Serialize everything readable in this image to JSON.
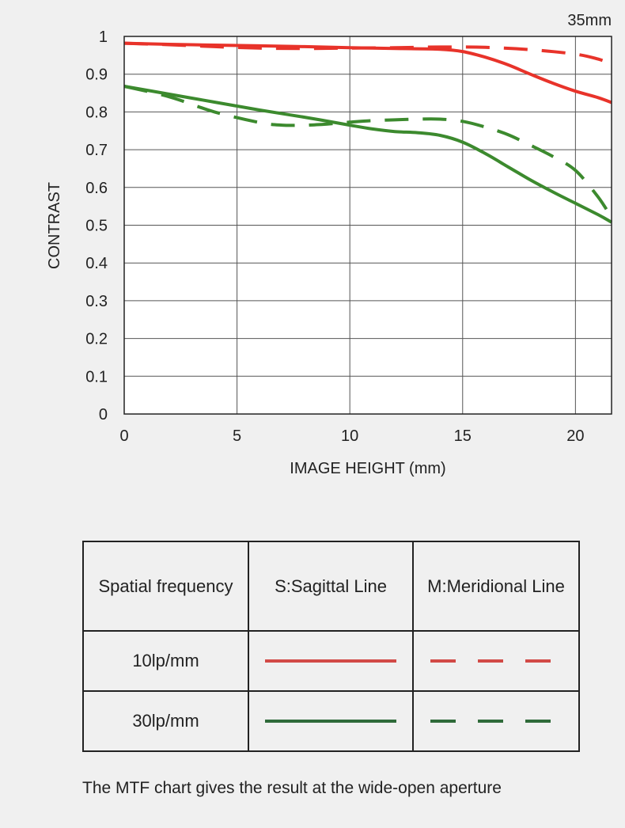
{
  "chart_data": {
    "type": "line",
    "title": "35mm",
    "xlabel": "IMAGE HEIGHT (mm)",
    "ylabel": "CONTRAST",
    "xlim": [
      0,
      21.6
    ],
    "ylim": [
      0,
      1
    ],
    "x_ticks": [
      "0",
      "5",
      "10",
      "15",
      "20"
    ],
    "y_ticks": [
      "0",
      "0.1",
      "0.2",
      "0.3",
      "0.4",
      "0.5",
      "0.6",
      "0.7",
      "0.8",
      "0.9",
      "1"
    ],
    "grid": true,
    "series": [
      {
        "name": "10lp/mm S:Sagittal Line",
        "color": "#e8332a",
        "dash": "solid",
        "x": [
          0,
          2,
          4,
          6,
          8,
          10,
          12,
          14,
          15,
          16,
          17,
          18,
          19,
          20,
          21,
          21.6
        ],
        "y": [
          0.982,
          0.979,
          0.977,
          0.975,
          0.973,
          0.97,
          0.968,
          0.966,
          0.96,
          0.945,
          0.925,
          0.9,
          0.876,
          0.855,
          0.838,
          0.825
        ]
      },
      {
        "name": "10lp/mm M:Meridional Line",
        "color": "#e8332a",
        "dash": "dashed",
        "x": [
          0,
          2,
          4,
          6,
          8,
          10,
          12,
          14,
          16,
          18,
          20,
          21,
          21.6
        ],
        "y": [
          0.982,
          0.978,
          0.973,
          0.969,
          0.968,
          0.969,
          0.97,
          0.972,
          0.971,
          0.965,
          0.953,
          0.94,
          0.927
        ]
      },
      {
        "name": "30lp/mm S:Sagittal Line",
        "color": "#3c8a2e",
        "dash": "solid",
        "x": [
          0,
          2,
          4,
          6,
          8,
          10,
          11,
          12,
          13,
          14,
          15,
          16,
          17,
          18,
          19,
          20,
          21,
          21.6
        ],
        "y": [
          0.868,
          0.847,
          0.826,
          0.805,
          0.786,
          0.765,
          0.755,
          0.748,
          0.745,
          0.738,
          0.72,
          0.69,
          0.655,
          0.62,
          0.588,
          0.558,
          0.528,
          0.508
        ]
      },
      {
        "name": "30lp/mm M:Meridional Line",
        "color": "#3c8a2e",
        "dash": "dashed",
        "x": [
          0,
          2,
          4,
          6,
          7,
          8,
          9,
          10,
          11,
          12,
          13,
          14,
          15,
          16,
          17,
          18,
          19,
          20,
          21,
          21.6
        ],
        "y": [
          0.868,
          0.84,
          0.8,
          0.772,
          0.765,
          0.765,
          0.768,
          0.773,
          0.777,
          0.779,
          0.781,
          0.781,
          0.775,
          0.76,
          0.74,
          0.712,
          0.682,
          0.645,
          0.575,
          0.52
        ]
      }
    ]
  },
  "legend": {
    "header": [
      "Spatial frequency",
      "S:Sagittal Line",
      "M:Meridional Line"
    ],
    "rows": [
      {
        "label": "10lp/mm",
        "color": "#d24a46"
      },
      {
        "label": "30lp/mm",
        "color": "#2f6b3a"
      }
    ]
  },
  "footnote": "The MTF chart gives the result at the wide-open aperture"
}
